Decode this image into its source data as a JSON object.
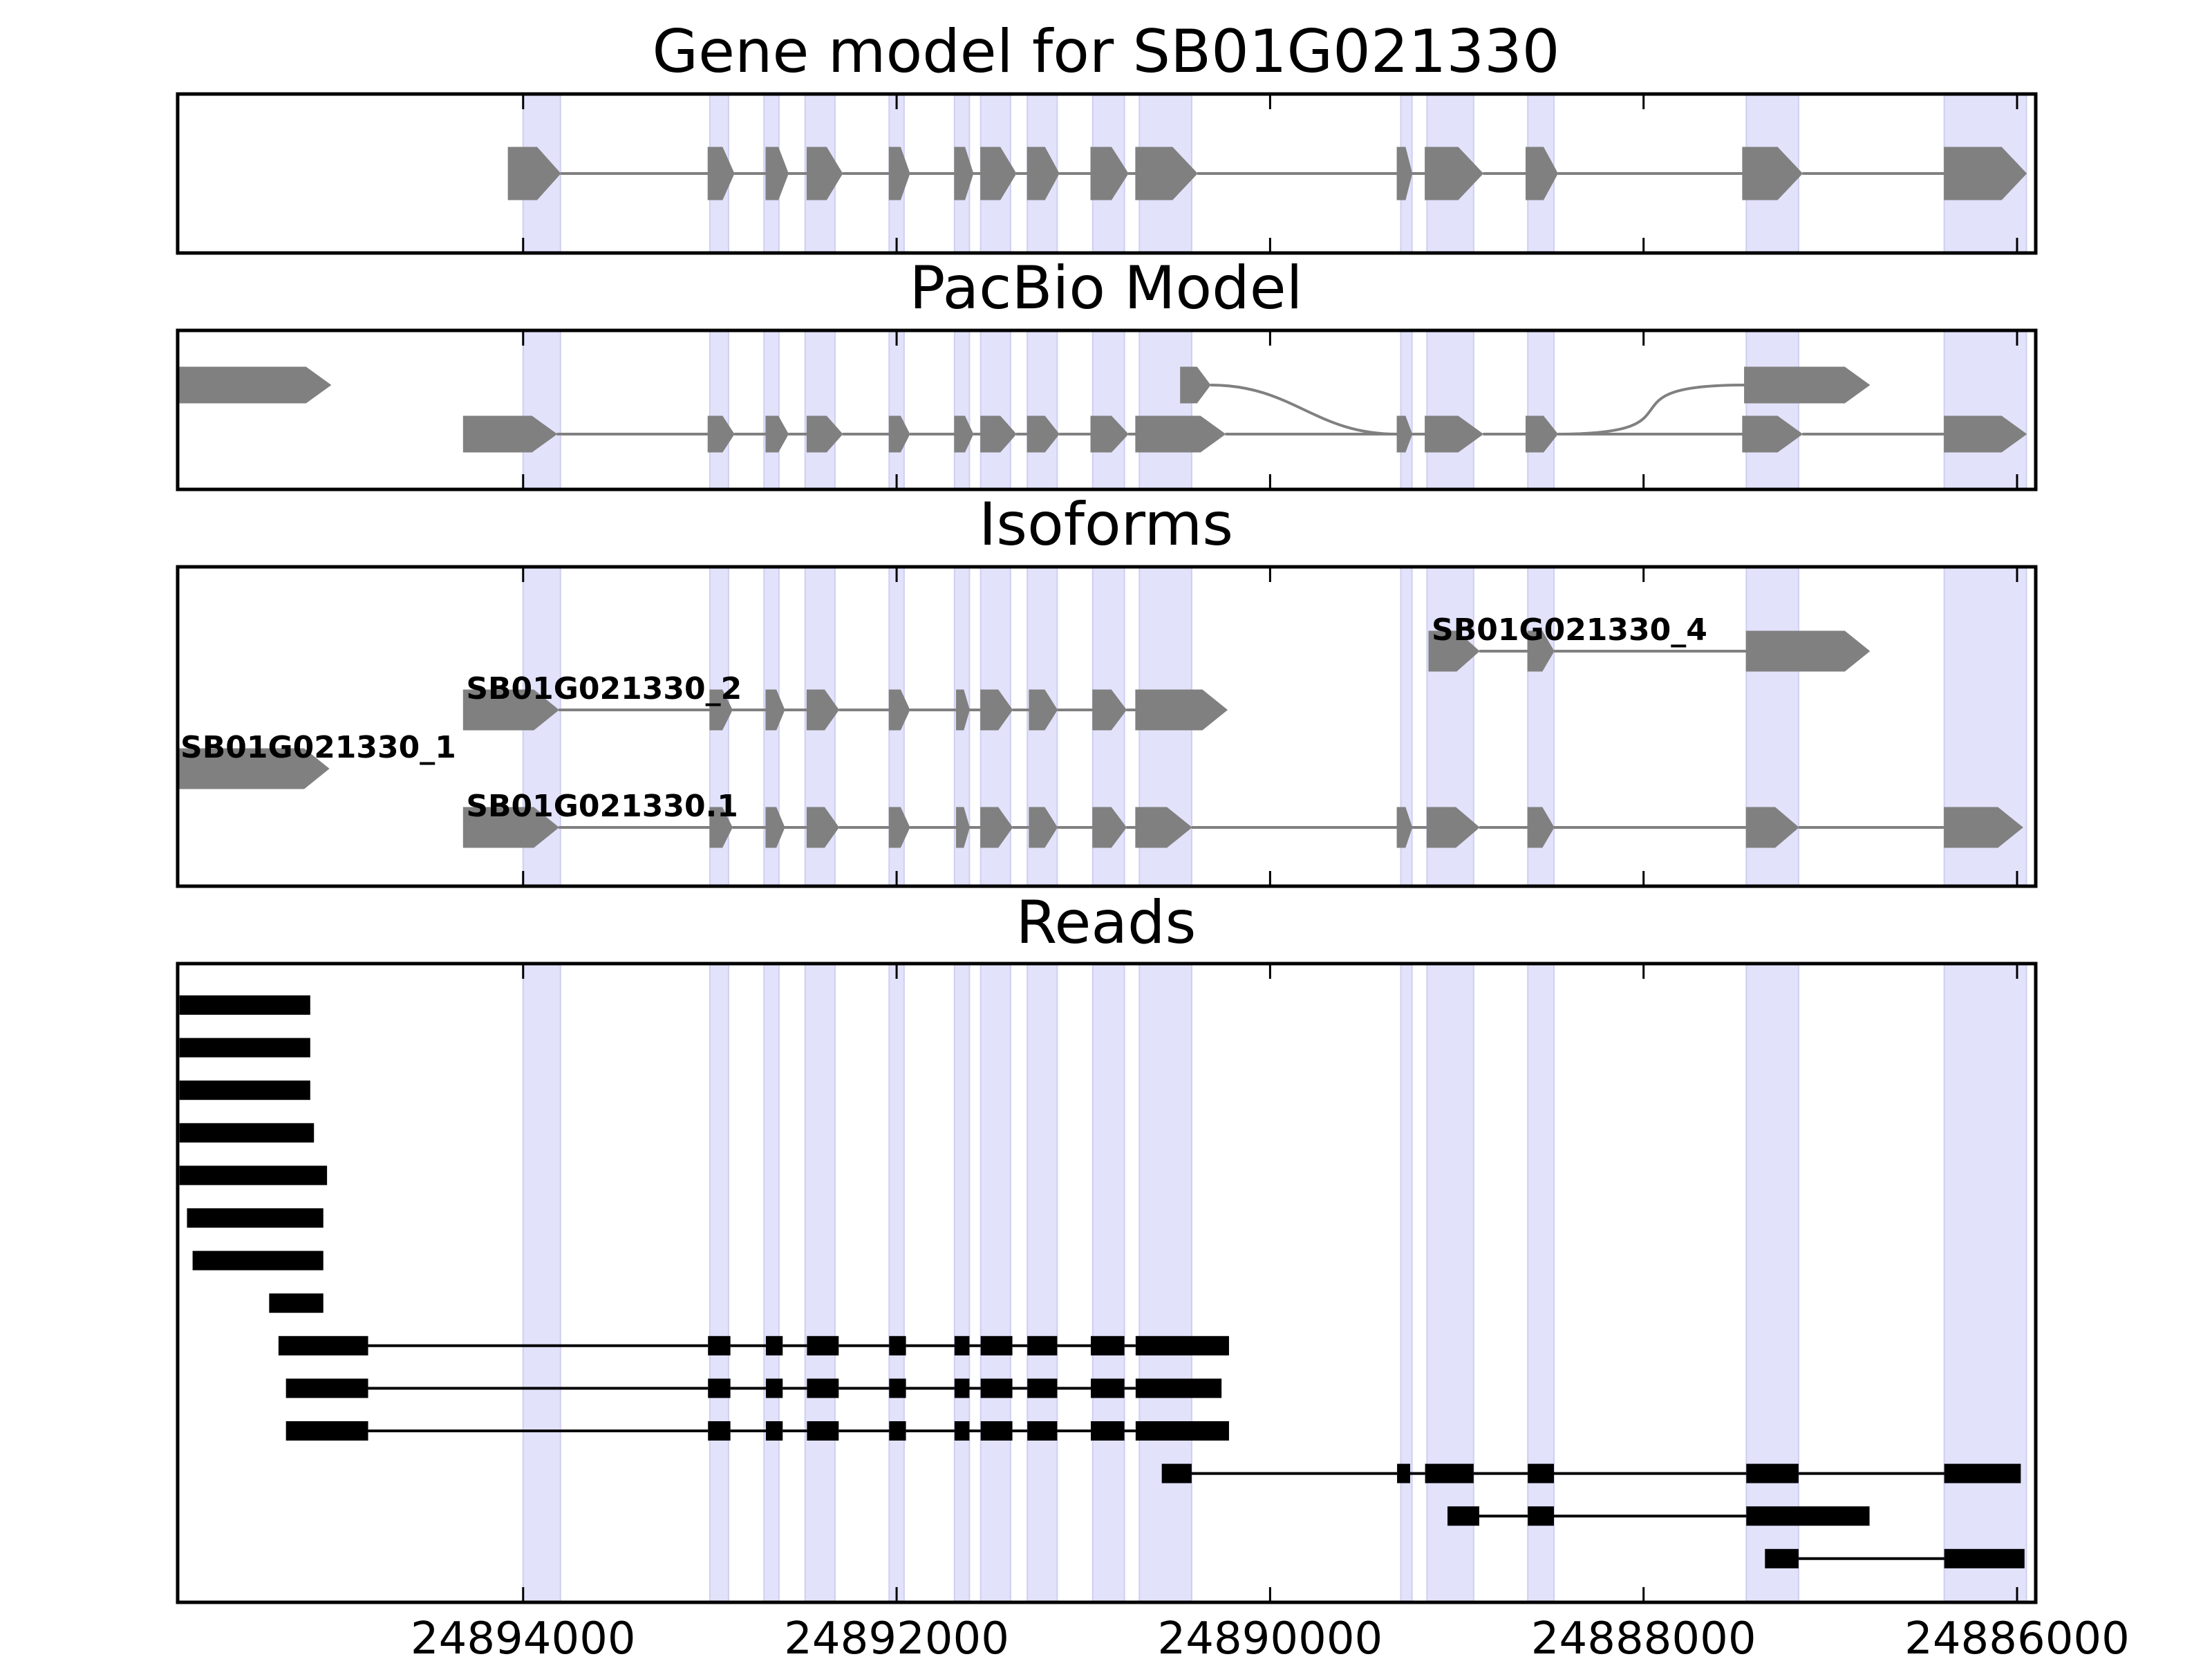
{
  "chart_data": {
    "type": "gene-track",
    "x_axis": {
      "reversed": true,
      "xlim": [
        24895850,
        24885900
      ],
      "ticks": [
        24894000,
        24892000,
        24890000,
        24888000,
        24886000
      ],
      "tick_labels": [
        "24894000",
        "24892000",
        "24890000",
        "24888000",
        "24886000"
      ]
    },
    "exon_highlights": [
      [
        24894000,
        24893800
      ],
      [
        24893000,
        24892900
      ],
      [
        24892710,
        24892630
      ],
      [
        24892490,
        24892330
      ],
      [
        24892040,
        24891960
      ],
      [
        24891690,
        24891610
      ],
      [
        24891550,
        24891390
      ],
      [
        24891300,
        24891140
      ],
      [
        24890950,
        24890780
      ],
      [
        24890700,
        24890420
      ],
      [
        24889300,
        24889240
      ],
      [
        24889160,
        24888910
      ],
      [
        24888620,
        24888480
      ],
      [
        24887450,
        24887170
      ],
      [
        24886390,
        24885950
      ]
    ],
    "panels": [
      {
        "title": "Gene model for SB01G021330",
        "tracks": [
          {
            "label": "",
            "exons": [
              [
                24894080,
                24893800
              ],
              [
                24893010,
                24892870
              ],
              [
                24892700,
                24892580
              ],
              [
                24892480,
                24892290
              ],
              [
                24892040,
                24891930
              ],
              [
                24891690,
                24891590
              ],
              [
                24891550,
                24891360
              ],
              [
                24891300,
                24891130
              ],
              [
                24890960,
                24890760
              ],
              [
                24890720,
                24890390
              ],
              [
                24889320,
                24889240
              ],
              [
                24889170,
                24888860
              ],
              [
                24888630,
                24888460
              ],
              [
                24887470,
                24887150
              ],
              [
                24886390,
                24885950
              ]
            ]
          }
        ]
      },
      {
        "title": "PacBio Model",
        "tracks": [
          {
            "label": "",
            "exons": [
              [
                24895850,
                24895030
              ]
            ]
          },
          {
            "label": "",
            "exons": [
              [
                24890480,
                24890320
              ],
              [
                24887460,
                24886790
              ]
            ],
            "curved_junctions": true
          },
          {
            "label": "",
            "exons": [
              [
                24894320,
                24893820
              ],
              [
                24893010,
                24892870
              ],
              [
                24892700,
                24892580
              ],
              [
                24892480,
                24892290
              ],
              [
                24892040,
                24891930
              ],
              [
                24891690,
                24891590
              ],
              [
                24891550,
                24891360
              ],
              [
                24891300,
                24891130
              ],
              [
                24890960,
                24890760
              ],
              [
                24890720,
                24890240
              ],
              [
                24889320,
                24889240
              ],
              [
                24889170,
                24888860
              ],
              [
                24888630,
                24888460
              ],
              [
                24887470,
                24887150
              ],
              [
                24886390,
                24885950
              ]
            ]
          }
        ]
      },
      {
        "title": "Isoforms",
        "tracks": [
          {
            "label": "SB01G021330_4",
            "exons": [
              [
                24889150,
                24888880
              ],
              [
                24888620,
                24888480
              ],
              [
                24887450,
                24886790
              ]
            ]
          },
          {
            "label": "SB01G021330_2",
            "exons": [
              [
                24894320,
                24893810
              ],
              [
                24893000,
                24892880
              ],
              [
                24892700,
                24892600
              ],
              [
                24892480,
                24892310
              ],
              [
                24892040,
                24891930
              ],
              [
                24891680,
                24891610
              ],
              [
                24891550,
                24891380
              ],
              [
                24891290,
                24891140
              ],
              [
                24890950,
                24890770
              ],
              [
                24890720,
                24890230
              ]
            ]
          },
          {
            "label": "SB01G021330_1",
            "exons": [
              [
                24895850,
                24895040
              ]
            ]
          },
          {
            "label": "SB01G021330.1",
            "exons": [
              [
                24894320,
                24893810
              ],
              [
                24893000,
                24892880
              ],
              [
                24892700,
                24892600
              ],
              [
                24892480,
                24892310
              ],
              [
                24892040,
                24891930
              ],
              [
                24891680,
                24891610
              ],
              [
                24891550,
                24891380
              ],
              [
                24891290,
                24891140
              ],
              [
                24890950,
                24890770
              ],
              [
                24890720,
                24890420
              ],
              [
                24889320,
                24889240
              ],
              [
                24889160,
                24888880
              ],
              [
                24888620,
                24888480
              ],
              [
                24887450,
                24887170
              ],
              [
                24886390,
                24885970
              ]
            ]
          }
        ]
      },
      {
        "title": "Reads",
        "reads": [
          [
            [
              24895840,
              24895140
            ]
          ],
          [
            [
              24895840,
              24895140
            ]
          ],
          [
            [
              24895840,
              24895140
            ]
          ],
          [
            [
              24895840,
              24895120
            ]
          ],
          [
            [
              24895840,
              24895050
            ]
          ],
          [
            [
              24895800,
              24895070
            ]
          ],
          [
            [
              24895770,
              24895070
            ]
          ],
          [
            [
              24895360,
              24895070
            ]
          ],
          [
            [
              24895310,
              24894830
            ],
            [
              24893010,
              24892890
            ],
            [
              24892700,
              24892610
            ],
            [
              24892480,
              24892310
            ],
            [
              24892040,
              24891950
            ],
            [
              24891690,
              24891610
            ],
            [
              24891550,
              24891380
            ],
            [
              24891300,
              24891140
            ],
            [
              24890960,
              24890780
            ],
            [
              24890720,
              24890220
            ]
          ],
          [
            [
              24895270,
              24894830
            ],
            [
              24893010,
              24892890
            ],
            [
              24892700,
              24892610
            ],
            [
              24892480,
              24892310
            ],
            [
              24892040,
              24891950
            ],
            [
              24891690,
              24891610
            ],
            [
              24891550,
              24891380
            ],
            [
              24891300,
              24891140
            ],
            [
              24890960,
              24890780
            ],
            [
              24890720,
              24890260
            ]
          ],
          [
            [
              24895270,
              24894830
            ],
            [
              24893010,
              24892890
            ],
            [
              24892700,
              24892610
            ],
            [
              24892480,
              24892310
            ],
            [
              24892040,
              24891950
            ],
            [
              24891690,
              24891610
            ],
            [
              24891550,
              24891380
            ],
            [
              24891300,
              24891140
            ],
            [
              24890960,
              24890780
            ],
            [
              24890720,
              24890220
            ]
          ],
          [
            [
              24890580,
              24890420
            ],
            [
              24889320,
              24889250
            ],
            [
              24889170,
              24888910
            ],
            [
              24888620,
              24888480
            ],
            [
              24887450,
              24887170
            ],
            [
              24886390,
              24885980
            ]
          ],
          [
            [
              24889050,
              24888880
            ],
            [
              24888620,
              24888480
            ],
            [
              24887450,
              24886790
            ]
          ],
          [
            [
              24887350,
              24887170
            ],
            [
              24886390,
              24885960
            ]
          ]
        ]
      }
    ]
  }
}
